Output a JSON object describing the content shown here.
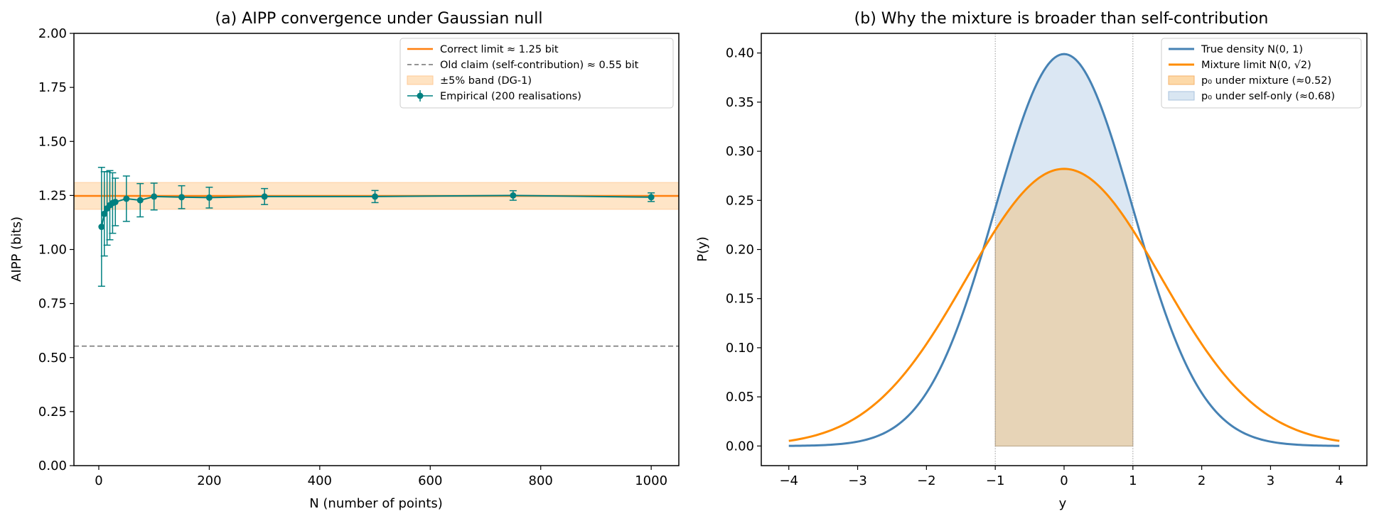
{
  "chart_data": [
    {
      "id": "a",
      "type": "line",
      "title": "(a)  AIPP convergence under Gaussian null",
      "xlabel": "N (number of points)",
      "ylabel": "AIPP (bits)",
      "xlim": [
        -45,
        1050
      ],
      "ylim": [
        0,
        2.0
      ],
      "xticks": [
        0,
        200,
        400,
        600,
        800,
        1000
      ],
      "yticks": [
        0.0,
        0.25,
        0.5,
        0.75,
        1.0,
        1.25,
        1.5,
        1.75,
        2.0
      ],
      "xtick_labels": [
        "0",
        "200",
        "400",
        "600",
        "800",
        "1000"
      ],
      "ytick_labels": [
        "0.00",
        "0.25",
        "0.50",
        "0.75",
        "1.00",
        "1.25",
        "1.50",
        "1.75",
        "2.00"
      ],
      "grid": false,
      "legend_position": "top-right",
      "reference_lines": [
        {
          "name": "Correct limit ≈ 1.25 bit",
          "y": 1.248,
          "color": "#ff7f0e",
          "style": "solid"
        },
        {
          "name": "Old claim (self-contribution) ≈ 0.55 bit",
          "y": 0.553,
          "color": "#707070",
          "style": "dashed"
        }
      ],
      "band": {
        "name": "±5% band (DG-1)",
        "ymin": 1.186,
        "ymax": 1.31,
        "color": "#ffe3c2"
      },
      "series": [
        {
          "name": "Empirical (200 realisations)",
          "color": "#008080",
          "x": [
            5,
            10,
            15,
            20,
            25,
            30,
            50,
            75,
            100,
            150,
            200,
            300,
            500,
            750,
            1000
          ],
          "y": [
            1.105,
            1.165,
            1.19,
            1.205,
            1.215,
            1.22,
            1.235,
            1.228,
            1.245,
            1.242,
            1.24,
            1.245,
            1.245,
            1.25,
            1.242
          ],
          "yerr": [
            0.275,
            0.195,
            0.17,
            0.16,
            0.14,
            0.11,
            0.105,
            0.077,
            0.062,
            0.053,
            0.048,
            0.037,
            0.028,
            0.022,
            0.02
          ]
        }
      ],
      "legend": [
        {
          "label": "Correct limit ≈ 1.25 bit",
          "kind": "line",
          "color": "#ff7f0e"
        },
        {
          "label": "Old claim (self-contribution) ≈ 0.55 bit",
          "kind": "dashed",
          "color": "#707070"
        },
        {
          "label": "±5% band (DG-1)",
          "kind": "patch",
          "color": "#ffe3c2"
        },
        {
          "label": "Empirical (200 realisations)",
          "kind": "errorbar",
          "color": "#008080"
        }
      ]
    },
    {
      "id": "b",
      "type": "area",
      "title": "(b)  Why the mixture is broader than self-contribution",
      "xlabel": "y",
      "ylabel": "P(y)",
      "xlim": [
        -4.4,
        4.4
      ],
      "ylim": [
        -0.02,
        0.42
      ],
      "xticks": [
        -4,
        -3,
        -2,
        -1,
        0,
        1,
        2,
        3,
        4
      ],
      "yticks": [
        0.0,
        0.05,
        0.1,
        0.15,
        0.2,
        0.25,
        0.3,
        0.35,
        0.4
      ],
      "xtick_labels": [
        "−4",
        "−3",
        "−2",
        "−1",
        "0",
        "1",
        "2",
        "3",
        "4"
      ],
      "ytick_labels": [
        "0.00",
        "0.05",
        "0.10",
        "0.15",
        "0.20",
        "0.25",
        "0.30",
        "0.35",
        "0.40"
      ],
      "grid": false,
      "legend_position": "top-right",
      "vertical_lines": [
        -1,
        1
      ],
      "series": [
        {
          "name": "True density N(0, 1)",
          "distribution": "normal",
          "mean": 0,
          "sd": 1,
          "x_range": [
            -4,
            4
          ],
          "color": "#4682b4"
        },
        {
          "name": "Mixture limit N(0, √2)",
          "distribution": "normal",
          "mean": 0,
          "sd": 1.41421356,
          "x_range": [
            -4,
            4
          ],
          "color": "#ff8c00"
        }
      ],
      "shaded_regions": [
        {
          "name": "p₀ under mixture (≈0.52)",
          "under": "Mixture limit N(0, √2)",
          "x_range": [
            -1,
            1
          ],
          "color": "#ffb347",
          "opacity": 0.35
        },
        {
          "name": "p₀ under self-only (≈0.68)",
          "under": "True density N(0, 1)",
          "x_range": [
            -1,
            1
          ],
          "color": "#a6c4e0",
          "opacity": 0.4
        }
      ],
      "legend": [
        {
          "label": "True density N(0, 1)",
          "kind": "line",
          "color": "#4682b4"
        },
        {
          "label": "Mixture limit N(0, √2)",
          "kind": "line",
          "color": "#ff8c00"
        },
        {
          "label": "p₀ under mixture (≈0.52)",
          "kind": "patch",
          "color": "#fdd9a8"
        },
        {
          "label": "p₀ under self-only (≈0.68)",
          "kind": "patch",
          "color": "#d9e6f2"
        }
      ]
    }
  ]
}
